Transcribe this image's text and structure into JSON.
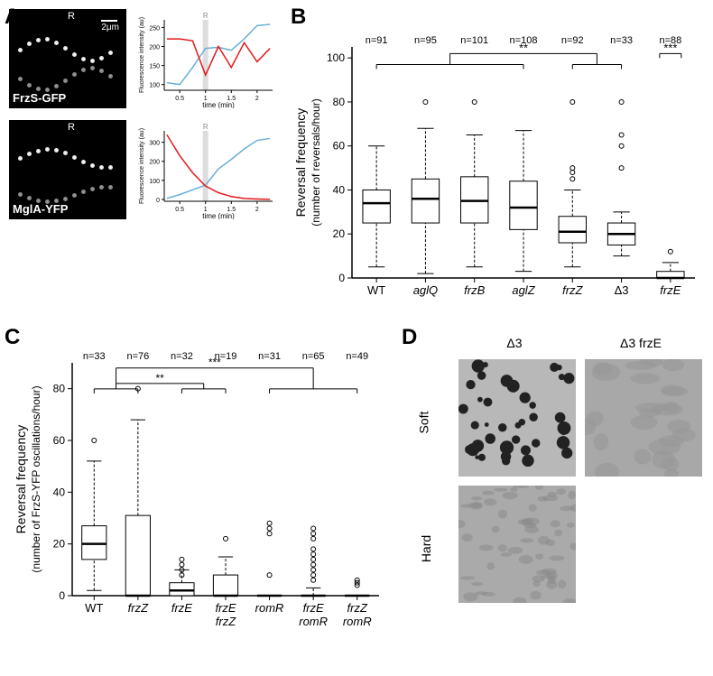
{
  "panelA": {
    "label": "A",
    "scaleBar": "2μm",
    "rMarker": "R",
    "kymographs": [
      {
        "label": "FrzS-GFP"
      },
      {
        "label": "MglA-YFP"
      }
    ],
    "charts": [
      {
        "yLabel": "Fluorescence intensity (au)",
        "xLabel": "time (min)",
        "xTicks": [
          0.5,
          1,
          1.5,
          2
        ],
        "yTicks": [
          100,
          150,
          200,
          250
        ],
        "ylim": [
          85,
          270
        ],
        "xlim": [
          0.2,
          2.3
        ],
        "redLine": [
          [
            0.25,
            220
          ],
          [
            0.5,
            220
          ],
          [
            0.75,
            215
          ],
          [
            1,
            125
          ],
          [
            1.25,
            200
          ],
          [
            1.5,
            145
          ],
          [
            1.75,
            210
          ],
          [
            2,
            160
          ],
          [
            2.25,
            195
          ]
        ],
        "blueLine": [
          [
            0.25,
            105
          ],
          [
            0.5,
            100
          ],
          [
            0.75,
            145
          ],
          [
            1,
            195
          ],
          [
            1.25,
            198
          ],
          [
            1.5,
            190
          ],
          [
            1.75,
            220
          ],
          [
            2,
            255
          ],
          [
            2.25,
            258
          ]
        ],
        "rMarkerX": 1,
        "redColor": "#e41a1c",
        "blueColor": "#6baed6"
      },
      {
        "yLabel": "Fluorescence intensity (au)",
        "xLabel": "time (min)",
        "xTicks": [
          0.5,
          1,
          1.5,
          2
        ],
        "yTicks": [
          0,
          100,
          200,
          300
        ],
        "ylim": [
          -10,
          360
        ],
        "xlim": [
          0.2,
          2.3
        ],
        "redLine": [
          [
            0.25,
            340
          ],
          [
            0.5,
            230
          ],
          [
            0.75,
            140
          ],
          [
            1,
            70
          ],
          [
            1.25,
            35
          ],
          [
            1.5,
            15
          ],
          [
            1.75,
            5
          ],
          [
            2,
            2
          ],
          [
            2.25,
            0
          ]
        ],
        "blueLine": [
          [
            0.25,
            5
          ],
          [
            0.5,
            25
          ],
          [
            0.75,
            50
          ],
          [
            1,
            75
          ],
          [
            1.25,
            160
          ],
          [
            1.5,
            210
          ],
          [
            1.75,
            265
          ],
          [
            2,
            310
          ],
          [
            2.25,
            320
          ]
        ],
        "rMarkerX": 1,
        "redColor": "#e41a1c",
        "blueColor": "#6baed6"
      }
    ]
  },
  "panelB": {
    "label": "B",
    "yLabel": "Reversal frequency",
    "ySubLabel": "(number of reversals/hour)",
    "yTicks": [
      0,
      20,
      40,
      60,
      80,
      100
    ],
    "ylim": [
      0,
      105
    ],
    "categories": [
      "WT",
      "aglQ",
      "frzB",
      "aglZ",
      "frzZ",
      "Δ3",
      "frzE"
    ],
    "italicIdx": [
      1,
      2,
      3,
      4,
      6
    ],
    "nValues": [
      "n=91",
      "n=95",
      "n=101",
      "n=108",
      "n=92",
      "n=33",
      "n=88"
    ],
    "boxes": [
      {
        "min": 5,
        "q1": 25,
        "med": 34,
        "q3": 40,
        "max": 60,
        "outliers": []
      },
      {
        "min": 2,
        "q1": 25,
        "med": 36,
        "q3": 45,
        "max": 68,
        "outliers": [
          80
        ]
      },
      {
        "min": 5,
        "q1": 25,
        "med": 35,
        "q3": 46,
        "max": 65,
        "outliers": [
          80
        ]
      },
      {
        "min": 3,
        "q1": 22,
        "med": 32,
        "q3": 44,
        "max": 67,
        "outliers": []
      },
      {
        "min": 5,
        "q1": 16,
        "med": 21,
        "q3": 28,
        "max": 40,
        "outliers": [
          45,
          48,
          50,
          80
        ]
      },
      {
        "min": 10,
        "q1": 15,
        "med": 20,
        "q3": 25,
        "max": 30,
        "outliers": [
          50,
          60,
          65,
          80
        ]
      },
      {
        "min": 0,
        "q1": 0,
        "med": 0,
        "q3": 3,
        "max": 7,
        "outliers": [
          12
        ]
      }
    ],
    "sigBars": [
      {
        "from": 0,
        "to": 4,
        "span2": 5,
        "y": 98,
        "label": "**"
      },
      {
        "from": 6,
        "to": 6,
        "y": 98,
        "label": "***",
        "single": true
      }
    ]
  },
  "panelC": {
    "label": "C",
    "yLabel": "Reversal frequency",
    "ySubLabel": "(number of FrzS-YFP oscillations/hour)",
    "yTicks": [
      0,
      20,
      40,
      60,
      80
    ],
    "ylim": [
      0,
      90
    ],
    "categories": [
      "WT",
      "frzZ",
      "frzE",
      "frzE\nfrzZ",
      "romR",
      "frzE\nromR",
      "frzZ\nromR"
    ],
    "italicIdx": [
      1,
      2,
      3,
      4,
      5,
      6
    ],
    "nValues": [
      "n=33",
      "n=76",
      "n=32",
      "n=19",
      "n=31",
      "n=65",
      "n=49"
    ],
    "boxes": [
      {
        "min": 2,
        "q1": 14,
        "med": 20,
        "q3": 27,
        "max": 52,
        "outliers": [
          60
        ]
      },
      {
        "min": 0,
        "q1": 0,
        "med": 0,
        "q3": 31,
        "max": 68,
        "outliers": [
          80
        ]
      },
      {
        "min": 0,
        "q1": 0,
        "med": 2,
        "q3": 5,
        "max": 10,
        "outliers": [
          8,
          10,
          12,
          14
        ]
      },
      {
        "min": 0,
        "q1": 0,
        "med": 0,
        "q3": 8,
        "max": 15,
        "outliers": [
          22
        ]
      },
      {
        "min": 0,
        "q1": 0,
        "med": 0,
        "q3": 0,
        "max": 0,
        "outliers": [
          8,
          24,
          26,
          28
        ]
      },
      {
        "min": 0,
        "q1": 0,
        "med": 0,
        "q3": 0,
        "max": 3,
        "outliers": [
          6,
          8,
          10,
          12,
          14,
          16,
          18,
          22,
          24,
          26
        ]
      },
      {
        "min": 0,
        "q1": 0,
        "med": 0,
        "q3": 0,
        "max": 0,
        "outliers": [
          4,
          5,
          6
        ]
      }
    ],
    "sigBars": [
      {
        "group1": [
          0,
          1
        ],
        "group2": [
          2,
          3
        ],
        "y": 82,
        "label": "**"
      },
      {
        "group1": [
          0,
          1
        ],
        "group2": [
          4,
          6
        ],
        "y": 88,
        "label": "***"
      }
    ]
  },
  "panelD": {
    "label": "D",
    "colLabels": [
      "Δ3",
      "Δ3 frzE"
    ],
    "rowLabels": [
      "Soft",
      "Hard"
    ],
    "images": [
      {
        "row": 0,
        "col": 0,
        "pattern": "spots"
      },
      {
        "row": 0,
        "col": 1,
        "pattern": "smooth"
      },
      {
        "row": 1,
        "col": 0,
        "pattern": "ripple"
      }
    ]
  }
}
